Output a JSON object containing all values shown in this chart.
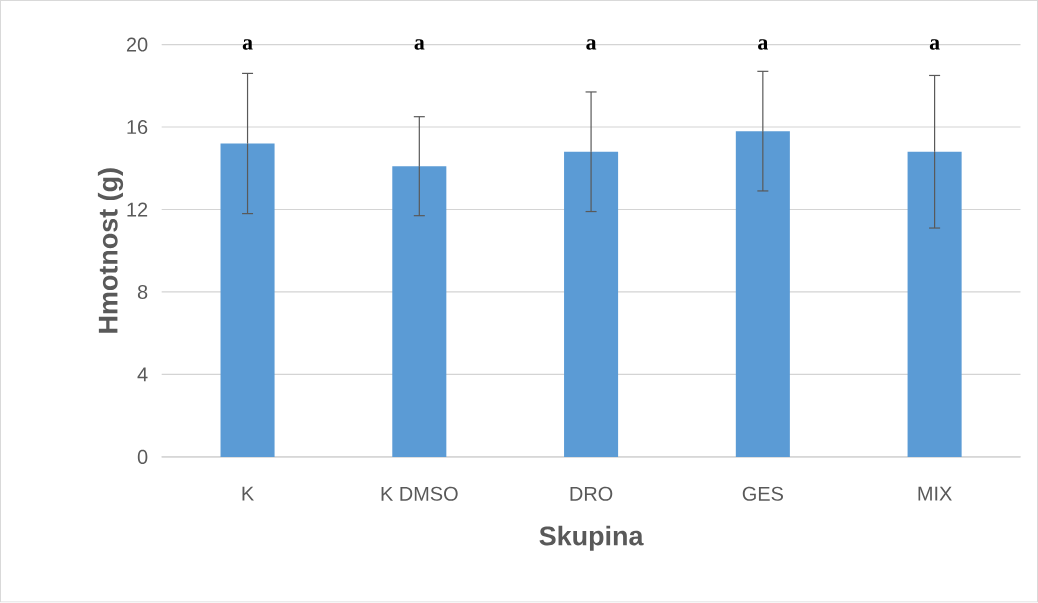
{
  "chart_data": {
    "type": "bar",
    "xlabel": "Skupina",
    "ylabel": "Hmotnost (g)",
    "categories": [
      "K",
      "K DMSO",
      "DRO",
      "GES",
      "MIX"
    ],
    "values": [
      15.2,
      14.1,
      14.8,
      15.8,
      14.8
    ],
    "errors": [
      3.4,
      2.4,
      2.9,
      2.9,
      3.7
    ],
    "color": "#5b9bd5",
    "ylim": [
      0,
      20
    ],
    "yticks": [
      0,
      4,
      8,
      12,
      16,
      20
    ],
    "grid": "y",
    "annotations": [
      "a",
      "a",
      "a",
      "a",
      "a"
    ]
  }
}
